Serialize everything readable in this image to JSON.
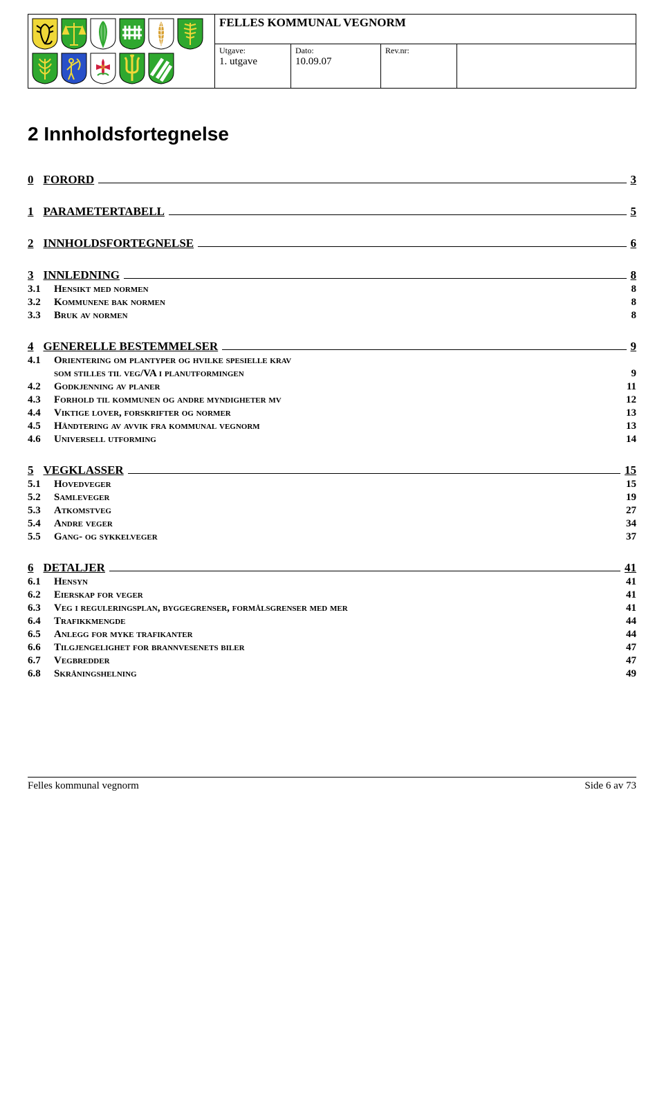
{
  "header": {
    "title": "FELLES KOMMUNAL VEGNORM",
    "utgave_label": "Utgave:",
    "utgave_value": "1. utgave",
    "dato_label": "Dato:",
    "dato_value": "10.09.07",
    "rev_label": "Rev.nr:",
    "rev_value": ""
  },
  "crests": [
    {
      "bg": "#f0d838",
      "icon": "scorpion",
      "fg": "#000000"
    },
    {
      "bg": "#2fa82f",
      "icon": "scales",
      "fg": "#f0d838"
    },
    {
      "bg": "#ffffff",
      "icon": "leaf",
      "fg": "#2fa82f"
    },
    {
      "bg": "#2fa82f",
      "icon": "fence",
      "fg": "#ffffff"
    },
    {
      "bg": "#ffffff",
      "icon": "feather",
      "fg": "#d8a030"
    },
    {
      "bg": "#2fa82f",
      "icon": "fern",
      "fg": "#f0d838"
    },
    {
      "bg": "#2fa82f",
      "icon": "sprig",
      "fg": "#f0d838"
    },
    {
      "bg": "#2850c8",
      "icon": "archer",
      "fg": "#f0d838"
    },
    {
      "bg": "#ffffff",
      "icon": "rose",
      "fg": "#d02040"
    },
    {
      "bg": "#2fa82f",
      "icon": "trident",
      "fg": "#f0d838"
    },
    {
      "bg": "#2fa82f",
      "icon": "stripes",
      "fg": "#ffffff"
    }
  ],
  "page_title": "2   Innholdsfortegnelse",
  "toc": [
    {
      "num": "0",
      "label": "FORORD",
      "page": "3",
      "subs": []
    },
    {
      "num": "1",
      "label": "PARAMETERTABELL",
      "page": "5",
      "subs": []
    },
    {
      "num": "2",
      "label": "INNHOLDSFORTEGNELSE",
      "page": "6",
      "subs": []
    },
    {
      "num": "3",
      "label": "INNLEDNING",
      "page": "8",
      "subs": [
        {
          "num": "3.1",
          "label": "Hensikt med normen",
          "page": "8"
        },
        {
          "num": "3.2",
          "label": "Kommunene bak normen",
          "page": "8"
        },
        {
          "num": "3.3",
          "label": "Bruk av normen",
          "page": "8"
        }
      ]
    },
    {
      "num": "4",
      "label": "GENERELLE BESTEMMELSER",
      "page": "9",
      "subs": [
        {
          "num": "4.1",
          "label": "Orientering om plantyper og hvilke spesielle krav",
          "page": ""
        },
        {
          "num": "",
          "label": "som stilles til veg/VA i planutformingen",
          "page": "9",
          "indent": true
        },
        {
          "num": "4.2",
          "label": "Godkjenning av planer",
          "page": "11"
        },
        {
          "num": "4.3",
          "label": "Forhold til kommunen og andre myndigheter mv",
          "page": "12"
        },
        {
          "num": "4.4",
          "label": "Viktige lover, forskrifter og normer",
          "page": "13"
        },
        {
          "num": "4.5",
          "label": "Håndtering av avvik fra kommunal vegnorm",
          "page": "13"
        },
        {
          "num": "4.6",
          "label": "Universell utforming",
          "page": "14"
        }
      ]
    },
    {
      "num": "5",
      "label": "VEGKLASSER",
      "page": "15",
      "subs": [
        {
          "num": "5.1",
          "label": "Hovedveger",
          "page": "15"
        },
        {
          "num": "5.2",
          "label": "Samleveger",
          "page": "19"
        },
        {
          "num": "5.3",
          "label": "Atkomstveg",
          "page": "27"
        },
        {
          "num": "5.4",
          "label": "Andre veger",
          "page": "34"
        },
        {
          "num": "5.5",
          "label": "Gang- og sykkelveger",
          "page": "37"
        }
      ]
    },
    {
      "num": "6",
      "label": "DETALJER",
      "page": "41",
      "subs": [
        {
          "num": "6.1",
          "label": "Hensyn",
          "page": "41"
        },
        {
          "num": "6.2",
          "label": "Eierskap for veger",
          "page": "41"
        },
        {
          "num": "6.3",
          "label": "Veg i reguleringsplan, byggegrenser, formålsgrenser med mer",
          "page": "41"
        },
        {
          "num": "6.4",
          "label": "Trafikkmengde",
          "page": "44"
        },
        {
          "num": "6.5",
          "label": "Anlegg for myke trafikanter",
          "page": "44"
        },
        {
          "num": "6.6",
          "label": "Tilgjengelighet for brannvesenets biler",
          "page": "47"
        },
        {
          "num": "6.7",
          "label": "Vegbredder",
          "page": "47"
        },
        {
          "num": "6.8",
          "label": "Skråningshelning",
          "page": "49"
        }
      ]
    }
  ],
  "footer": {
    "left": "Felles kommunal vegnorm",
    "right": "Side 6 av 73"
  }
}
